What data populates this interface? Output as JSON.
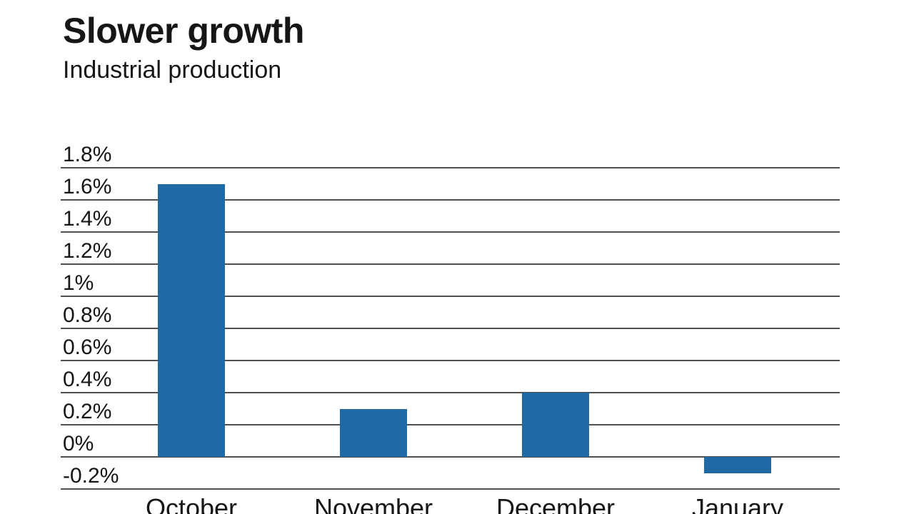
{
  "header": {
    "title": "Slower growth",
    "subtitle": "Industrial production"
  },
  "chart_data": {
    "type": "bar",
    "title": "Slower growth",
    "subtitle": "Industrial production",
    "categories": [
      "October",
      "November",
      "December",
      "January"
    ],
    "values": [
      1.7,
      0.3,
      0.4,
      -0.1
    ],
    "xlabel": "",
    "ylabel": "",
    "ylim": [
      -0.2,
      1.8
    ],
    "ytick_step": 0.2,
    "yticks": [
      {
        "value": 1.8,
        "label": "1.8%"
      },
      {
        "value": 1.6,
        "label": "1.6%"
      },
      {
        "value": 1.4,
        "label": "1.4%"
      },
      {
        "value": 1.2,
        "label": "1.2%"
      },
      {
        "value": 1.0,
        "label": "1%"
      },
      {
        "value": 0.8,
        "label": "0.8%"
      },
      {
        "value": 0.6,
        "label": "0.6%"
      },
      {
        "value": 0.4,
        "label": "0.4%"
      },
      {
        "value": 0.2,
        "label": "0.2%"
      },
      {
        "value": 0.0,
        "label": "0%"
      },
      {
        "value": -0.2,
        "label": "-0.2%"
      }
    ],
    "grid": "horizontal",
    "legend": "none",
    "bar_color": "#1f6aa5",
    "gridline_color": "#4f4f4f",
    "text_color": "#161616",
    "background_color": "#ffffff"
  }
}
